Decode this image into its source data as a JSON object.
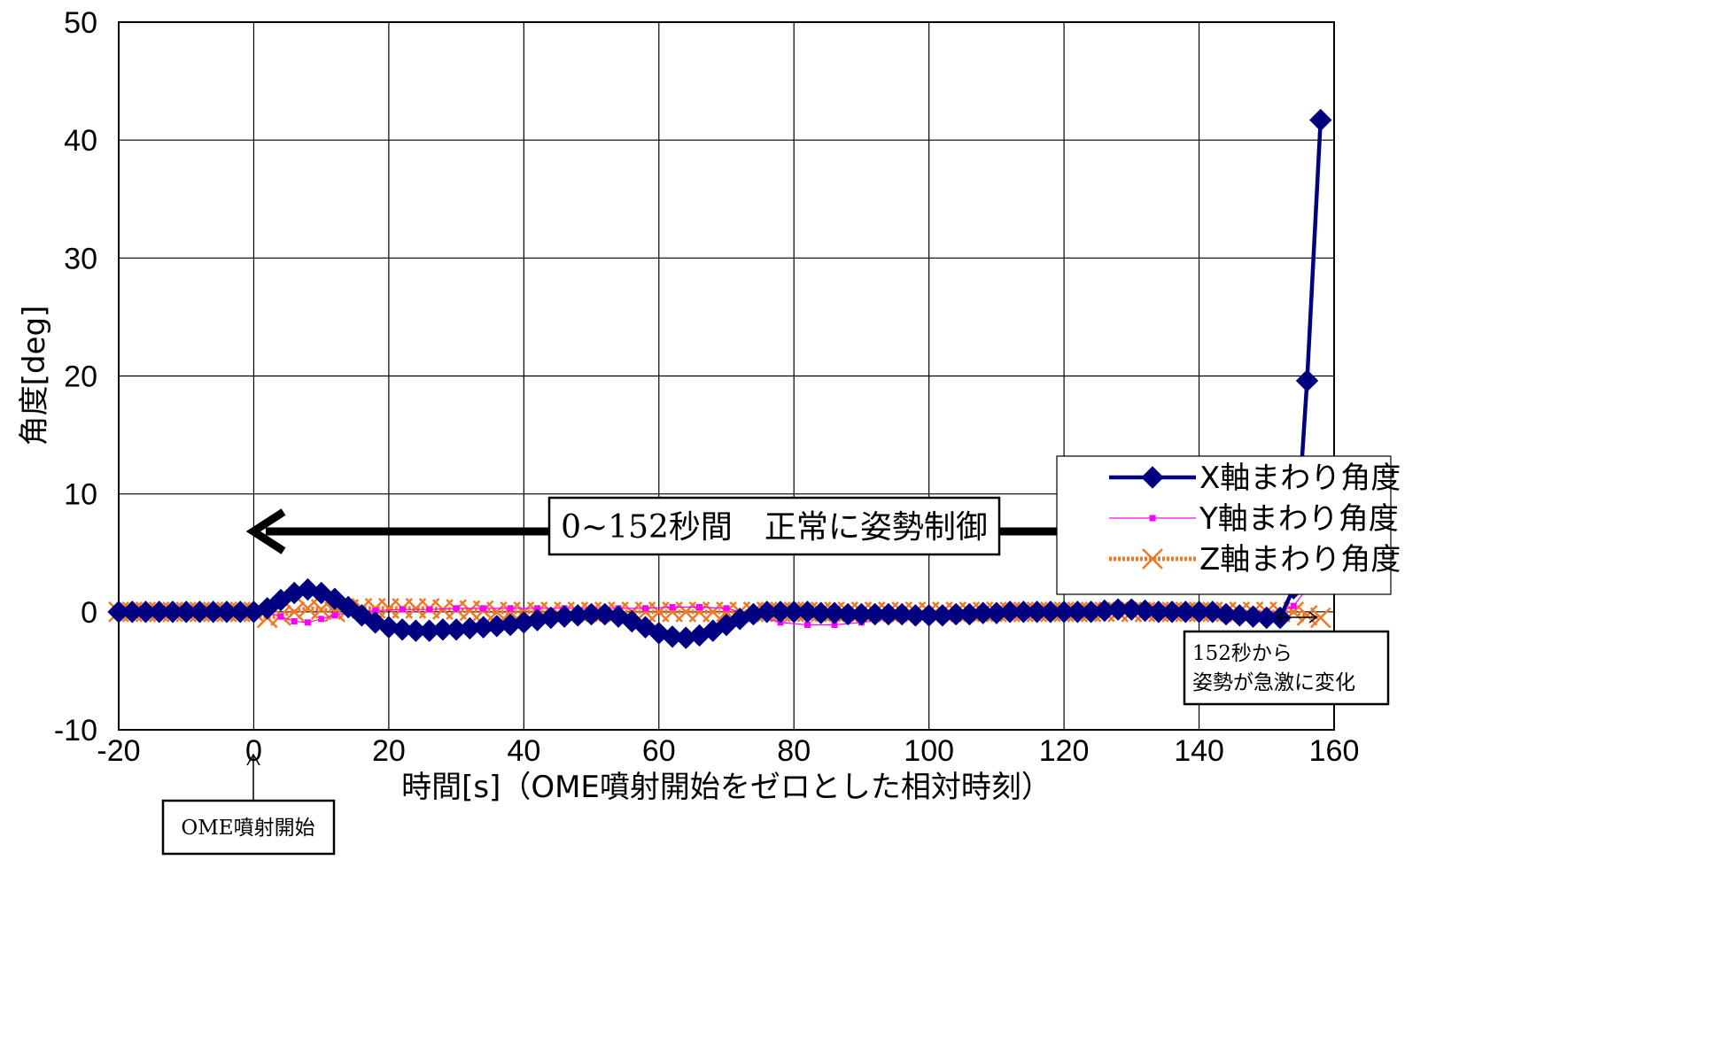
{
  "chart_data": {
    "type": "line",
    "xlabel": "時間[s]（OME噴射開始をゼロとした相対時刻）",
    "ylabel": "角度[deg]",
    "xlim": [
      -20,
      160
    ],
    "ylim": [
      -10,
      50
    ],
    "x_ticks": [
      "-20",
      "0",
      "20",
      "40",
      "60",
      "80",
      "100",
      "120",
      "140",
      "160"
    ],
    "y_ticks": [
      "50",
      "40",
      "30",
      "20",
      "10",
      "0",
      "-10"
    ],
    "grid": true,
    "legend_position": "right",
    "series": [
      {
        "name": "X軸まわり角度",
        "color": "#000080",
        "marker": "diamond",
        "points": [
          [
            -20,
            0
          ],
          [
            -18,
            0
          ],
          [
            -16,
            0
          ],
          [
            -14,
            0
          ],
          [
            -12,
            0
          ],
          [
            -10,
            0
          ],
          [
            -8,
            0
          ],
          [
            -6,
            0
          ],
          [
            -4,
            0
          ],
          [
            -2,
            0
          ],
          [
            0,
            0
          ],
          [
            2,
            0.3
          ],
          [
            4,
            1.0
          ],
          [
            6,
            1.6
          ],
          [
            8,
            1.9
          ],
          [
            10,
            1.6
          ],
          [
            12,
            1.1
          ],
          [
            14,
            0.4
          ],
          [
            16,
            -0.3
          ],
          [
            18,
            -0.9
          ],
          [
            20,
            -1.3
          ],
          [
            22,
            -1.5
          ],
          [
            24,
            -1.6
          ],
          [
            26,
            -1.6
          ],
          [
            28,
            -1.5
          ],
          [
            30,
            -1.5
          ],
          [
            32,
            -1.4
          ],
          [
            34,
            -1.3
          ],
          [
            36,
            -1.2
          ],
          [
            38,
            -1.1
          ],
          [
            40,
            -0.9
          ],
          [
            42,
            -0.7
          ],
          [
            44,
            -0.5
          ],
          [
            46,
            -0.4
          ],
          [
            48,
            -0.3
          ],
          [
            50,
            -0.2
          ],
          [
            52,
            -0.2
          ],
          [
            54,
            -0.4
          ],
          [
            56,
            -0.8
          ],
          [
            58,
            -1.3
          ],
          [
            60,
            -1.8
          ],
          [
            62,
            -2.1
          ],
          [
            64,
            -2.2
          ],
          [
            66,
            -2.0
          ],
          [
            68,
            -1.6
          ],
          [
            70,
            -1.1
          ],
          [
            72,
            -0.6
          ],
          [
            74,
            -0.2
          ],
          [
            76,
            0
          ],
          [
            78,
            0
          ],
          [
            80,
            0
          ],
          [
            82,
            0
          ],
          [
            84,
            -0.1
          ],
          [
            86,
            -0.1
          ],
          [
            88,
            -0.2
          ],
          [
            90,
            -0.2
          ],
          [
            92,
            -0.2
          ],
          [
            94,
            -0.2
          ],
          [
            96,
            -0.2
          ],
          [
            98,
            -0.3
          ],
          [
            100,
            -0.3
          ],
          [
            102,
            -0.3
          ],
          [
            104,
            -0.2
          ],
          [
            106,
            -0.2
          ],
          [
            108,
            -0.1
          ],
          [
            110,
            -0.1
          ],
          [
            112,
            0
          ],
          [
            114,
            0
          ],
          [
            116,
            0
          ],
          [
            118,
            0
          ],
          [
            120,
            0
          ],
          [
            122,
            0
          ],
          [
            124,
            0
          ],
          [
            126,
            0.1
          ],
          [
            128,
            0.2
          ],
          [
            130,
            0.2
          ],
          [
            132,
            0.1
          ],
          [
            134,
            0
          ],
          [
            136,
            0
          ],
          [
            138,
            0
          ],
          [
            140,
            0
          ],
          [
            142,
            0
          ],
          [
            144,
            -0.2
          ],
          [
            146,
            -0.3
          ],
          [
            148,
            -0.4
          ],
          [
            150,
            -0.5
          ],
          [
            152,
            -0.5
          ],
          [
            154,
            2.0
          ],
          [
            156,
            19.6
          ],
          [
            158,
            41.7
          ]
        ]
      },
      {
        "name": "Y軸まわり角度",
        "color": "#FF00FF",
        "marker": "square",
        "points": [
          [
            -20,
            0
          ],
          [
            -16,
            0
          ],
          [
            -12,
            0
          ],
          [
            -8,
            0
          ],
          [
            -4,
            0
          ],
          [
            0,
            0
          ],
          [
            2,
            0
          ],
          [
            4,
            -0.4
          ],
          [
            6,
            -0.8
          ],
          [
            8,
            -0.9
          ],
          [
            10,
            -0.6
          ],
          [
            12,
            -0.3
          ],
          [
            14,
            0
          ],
          [
            18,
            0.1
          ],
          [
            22,
            0.2
          ],
          [
            26,
            0.2
          ],
          [
            30,
            0.3
          ],
          [
            34,
            0.3
          ],
          [
            38,
            0.3
          ],
          [
            42,
            0.3
          ],
          [
            46,
            0.3
          ],
          [
            50,
            0.3
          ],
          [
            54,
            0.3
          ],
          [
            58,
            0.3
          ],
          [
            62,
            0.4
          ],
          [
            66,
            0.4
          ],
          [
            70,
            0.3
          ],
          [
            74,
            -0.3
          ],
          [
            78,
            -0.9
          ],
          [
            82,
            -1.1
          ],
          [
            86,
            -1.1
          ],
          [
            90,
            -0.9
          ],
          [
            94,
            -0.6
          ],
          [
            98,
            -0.4
          ],
          [
            102,
            -0.3
          ],
          [
            106,
            -0.2
          ],
          [
            110,
            -0.1
          ],
          [
            114,
            0
          ],
          [
            118,
            0
          ],
          [
            122,
            0
          ],
          [
            126,
            0
          ],
          [
            130,
            0
          ],
          [
            134,
            0
          ],
          [
            138,
            0
          ],
          [
            142,
            0
          ],
          [
            146,
            0
          ],
          [
            150,
            0
          ],
          [
            152,
            0
          ],
          [
            154,
            0.5
          ],
          [
            156,
            2.0
          ],
          [
            157,
            3.5
          ],
          [
            158,
            4.7
          ]
        ]
      },
      {
        "name": "Z軸まわり角度",
        "color": "#F07828",
        "marker": "x",
        "points": [
          [
            -20,
            0
          ],
          [
            -18,
            0
          ],
          [
            -16,
            0
          ],
          [
            -14,
            0
          ],
          [
            -12,
            0
          ],
          [
            -10,
            0
          ],
          [
            -8,
            0
          ],
          [
            -6,
            0
          ],
          [
            -4,
            0
          ],
          [
            -2,
            0
          ],
          [
            0,
            0
          ],
          [
            2,
            -0.5
          ],
          [
            4,
            -0.3
          ],
          [
            6,
            0
          ],
          [
            8,
            0.3
          ],
          [
            10,
            0.2
          ],
          [
            12,
            0
          ],
          [
            14,
            0.2
          ],
          [
            16,
            0.3
          ],
          [
            18,
            0.3
          ],
          [
            20,
            0.3
          ],
          [
            22,
            0.3
          ],
          [
            24,
            0.3
          ],
          [
            26,
            0.3
          ],
          [
            28,
            0.2
          ],
          [
            30,
            0.2
          ],
          [
            32,
            0.1
          ],
          [
            34,
            0.1
          ],
          [
            36,
            0
          ],
          [
            38,
            0
          ],
          [
            40,
            0
          ],
          [
            42,
            0
          ],
          [
            44,
            0
          ],
          [
            46,
            0
          ],
          [
            48,
            0
          ],
          [
            50,
            0
          ],
          [
            52,
            0
          ],
          [
            54,
            0
          ],
          [
            56,
            0
          ],
          [
            58,
            0
          ],
          [
            60,
            0
          ],
          [
            62,
            0
          ],
          [
            64,
            0
          ],
          [
            66,
            0
          ],
          [
            68,
            0
          ],
          [
            70,
            0
          ],
          [
            72,
            0
          ],
          [
            74,
            0
          ],
          [
            76,
            0
          ],
          [
            78,
            0
          ],
          [
            80,
            0
          ],
          [
            82,
            0
          ],
          [
            84,
            0
          ],
          [
            86,
            0
          ],
          [
            88,
            0
          ],
          [
            90,
            0
          ],
          [
            92,
            0
          ],
          [
            94,
            0
          ],
          [
            96,
            0
          ],
          [
            98,
            0
          ],
          [
            100,
            0
          ],
          [
            102,
            0
          ],
          [
            104,
            0
          ],
          [
            106,
            0
          ],
          [
            108,
            0
          ],
          [
            110,
            0
          ],
          [
            112,
            0
          ],
          [
            114,
            0
          ],
          [
            116,
            0
          ],
          [
            118,
            0
          ],
          [
            120,
            0
          ],
          [
            122,
            0
          ],
          [
            124,
            0
          ],
          [
            126,
            0
          ],
          [
            128,
            0
          ],
          [
            130,
            0
          ],
          [
            132,
            0
          ],
          [
            134,
            0
          ],
          [
            136,
            0
          ],
          [
            138,
            0
          ],
          [
            140,
            0
          ],
          [
            142,
            0
          ],
          [
            144,
            0
          ],
          [
            146,
            0
          ],
          [
            148,
            0
          ],
          [
            150,
            0
          ],
          [
            152,
            0
          ],
          [
            154,
            0
          ],
          [
            156,
            -0.3
          ],
          [
            158,
            -0.5
          ]
        ]
      }
    ],
    "annotations": {
      "range_label": "0~152秒間　正常に姿勢制御",
      "change_label_line1": "152秒から",
      "change_label_line2": "姿勢が急激に変化",
      "start_label": "OME噴射開始"
    }
  }
}
